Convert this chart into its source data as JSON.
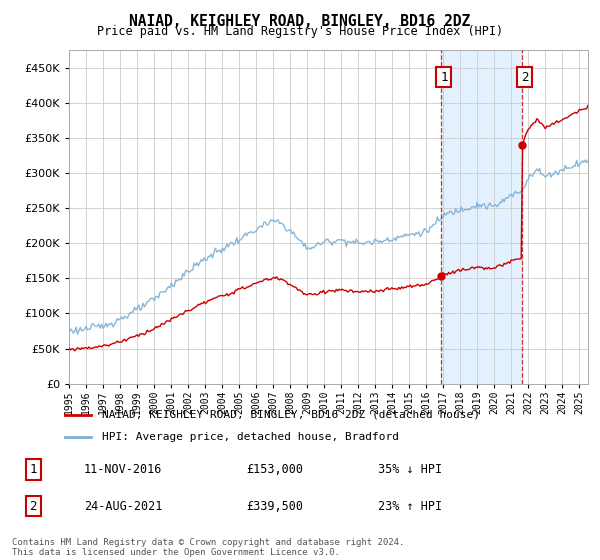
{
  "title": "NAIAD, KEIGHLEY ROAD, BINGLEY, BD16 2DZ",
  "subtitle": "Price paid vs. HM Land Registry's House Price Index (HPI)",
  "ylim": [
    0,
    475000
  ],
  "yticks": [
    0,
    50000,
    100000,
    150000,
    200000,
    250000,
    300000,
    350000,
    400000,
    450000
  ],
  "ytick_labels": [
    "£0",
    "£50K",
    "£100K",
    "£150K",
    "£200K",
    "£250K",
    "£300K",
    "£350K",
    "£400K",
    "£450K"
  ],
  "background_color": "#ffffff",
  "plot_bg_color": "#ffffff",
  "grid_color": "#cccccc",
  "sale1_year": 2016.875,
  "sale1_price": 153000,
  "sale2_year": 2021.625,
  "sale2_price": 339500,
  "ann1": {
    "label": "1",
    "date_str": "11-NOV-2016",
    "price_str": "£153,000",
    "pct_str": "35% ↓ HPI"
  },
  "ann2": {
    "label": "2",
    "date_str": "24-AUG-2021",
    "price_str": "£339,500",
    "pct_str": "23% ↑ HPI"
  },
  "legend_line1": "NAIAD, KEIGHLEY ROAD, BINGLEY, BD16 2DZ (detached house)",
  "legend_line2": "HPI: Average price, detached house, Bradford",
  "footer": "Contains HM Land Registry data © Crown copyright and database right 2024.\nThis data is licensed under the Open Government Licence v3.0.",
  "hpi_color": "#7bafd4",
  "price_color": "#cc0000",
  "shade_color": "#ddeeff",
  "xlim_start": 1995,
  "xlim_end": 2025.5
}
